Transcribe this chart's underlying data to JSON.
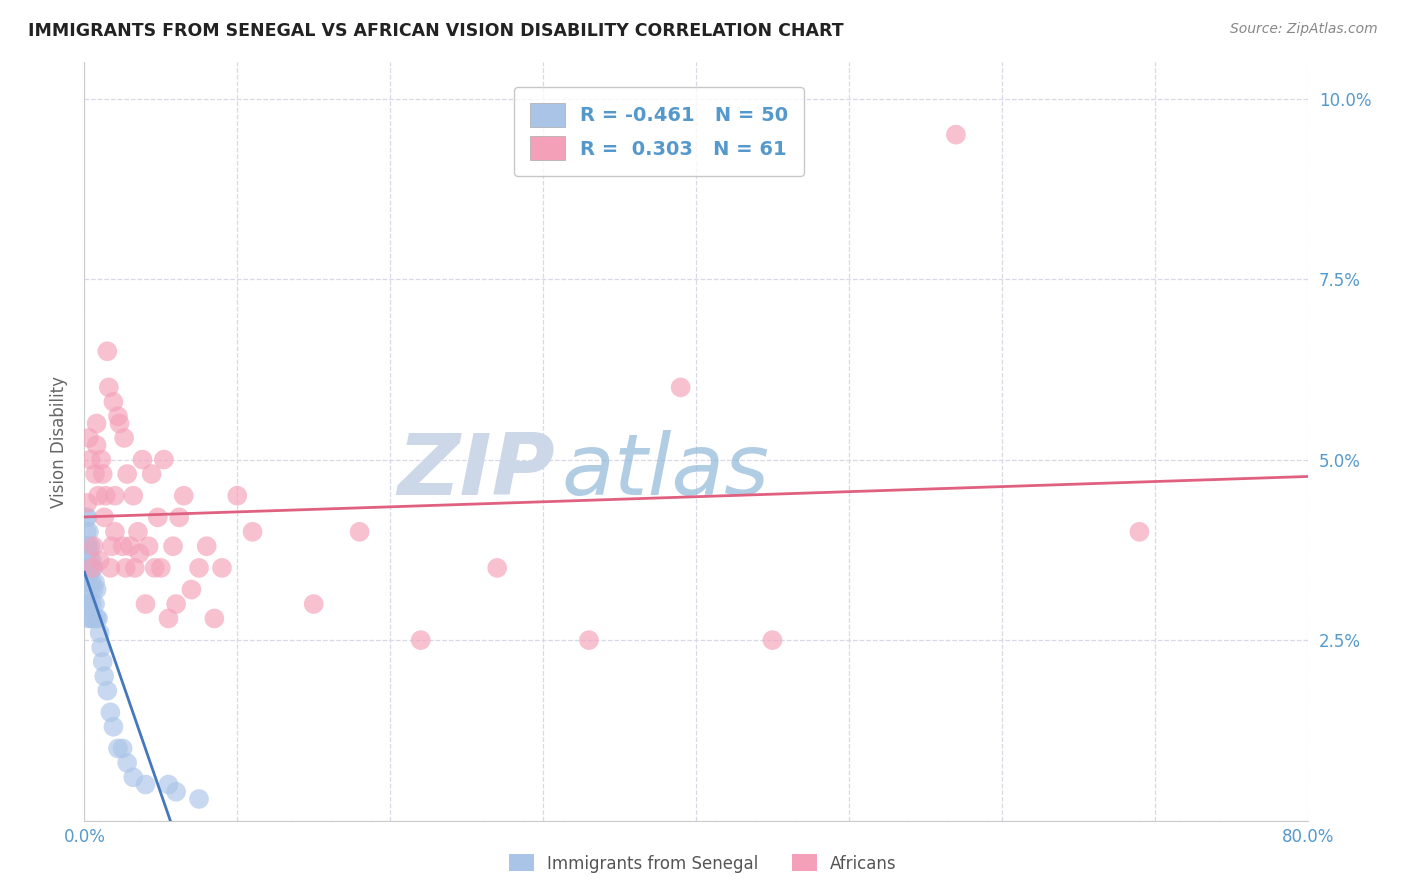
{
  "title": "IMMIGRANTS FROM SENEGAL VS AFRICAN VISION DISABILITY CORRELATION CHART",
  "source": "Source: ZipAtlas.com",
  "ylabel": "Vision Disability",
  "series1_label": "Immigrants from Senegal",
  "series2_label": "Africans",
  "series1_R": -0.461,
  "series1_N": 50,
  "series2_R": 0.303,
  "series2_N": 61,
  "series1_color": "#aac4e8",
  "series2_color": "#f4a0b8",
  "trendline1_color": "#4477bb",
  "trendline2_color": "#e06080",
  "background_color": "#ffffff",
  "grid_color": "#d8d8e8",
  "tick_color": "#5599cc",
  "title_color": "#222222",
  "watermark_zip_color": "#c0cfe0",
  "watermark_atlas_color": "#90b8d8",
  "xlim": [
    0.0,
    0.8
  ],
  "ylim": [
    0.0,
    0.105
  ],
  "yticks": [
    0.0,
    0.025,
    0.05,
    0.075,
    0.1
  ],
  "xticks": [
    0.0,
    0.1,
    0.2,
    0.3,
    0.4,
    0.5,
    0.6,
    0.7,
    0.8
  ],
  "series1_x": [
    0.0005,
    0.0005,
    0.001,
    0.001,
    0.001,
    0.001,
    0.0015,
    0.0015,
    0.002,
    0.002,
    0.002,
    0.002,
    0.002,
    0.0025,
    0.0025,
    0.003,
    0.003,
    0.003,
    0.003,
    0.003,
    0.004,
    0.004,
    0.004,
    0.004,
    0.005,
    0.005,
    0.005,
    0.006,
    0.006,
    0.006,
    0.007,
    0.007,
    0.008,
    0.008,
    0.009,
    0.01,
    0.011,
    0.012,
    0.013,
    0.015,
    0.017,
    0.019,
    0.022,
    0.025,
    0.028,
    0.032,
    0.04,
    0.055,
    0.06,
    0.075
  ],
  "series1_y": [
    0.038,
    0.033,
    0.042,
    0.038,
    0.035,
    0.03,
    0.04,
    0.036,
    0.042,
    0.038,
    0.035,
    0.033,
    0.03,
    0.038,
    0.034,
    0.04,
    0.037,
    0.034,
    0.03,
    0.028,
    0.038,
    0.035,
    0.032,
    0.028,
    0.036,
    0.033,
    0.03,
    0.035,
    0.032,
    0.028,
    0.033,
    0.03,
    0.032,
    0.028,
    0.028,
    0.026,
    0.024,
    0.022,
    0.02,
    0.018,
    0.015,
    0.013,
    0.01,
    0.01,
    0.008,
    0.006,
    0.005,
    0.005,
    0.004,
    0.003
  ],
  "series2_x": [
    0.002,
    0.003,
    0.004,
    0.005,
    0.006,
    0.007,
    0.008,
    0.008,
    0.009,
    0.01,
    0.011,
    0.012,
    0.013,
    0.014,
    0.015,
    0.016,
    0.017,
    0.018,
    0.019,
    0.02,
    0.02,
    0.022,
    0.023,
    0.025,
    0.026,
    0.027,
    0.028,
    0.03,
    0.032,
    0.033,
    0.035,
    0.036,
    0.038,
    0.04,
    0.042,
    0.044,
    0.046,
    0.048,
    0.05,
    0.052,
    0.055,
    0.058,
    0.06,
    0.062,
    0.065,
    0.07,
    0.075,
    0.08,
    0.085,
    0.09,
    0.1,
    0.11,
    0.15,
    0.18,
    0.22,
    0.27,
    0.33,
    0.39,
    0.45,
    0.57,
    0.69
  ],
  "series2_y": [
    0.044,
    0.053,
    0.05,
    0.035,
    0.038,
    0.048,
    0.055,
    0.052,
    0.045,
    0.036,
    0.05,
    0.048,
    0.042,
    0.045,
    0.065,
    0.06,
    0.035,
    0.038,
    0.058,
    0.04,
    0.045,
    0.056,
    0.055,
    0.038,
    0.053,
    0.035,
    0.048,
    0.038,
    0.045,
    0.035,
    0.04,
    0.037,
    0.05,
    0.03,
    0.038,
    0.048,
    0.035,
    0.042,
    0.035,
    0.05,
    0.028,
    0.038,
    0.03,
    0.042,
    0.045,
    0.032,
    0.035,
    0.038,
    0.028,
    0.035,
    0.045,
    0.04,
    0.03,
    0.04,
    0.025,
    0.035,
    0.025,
    0.06,
    0.025,
    0.095,
    0.04
  ],
  "legend_box_color": "#ffffff",
  "legend_border_color": "#bbbbbb"
}
